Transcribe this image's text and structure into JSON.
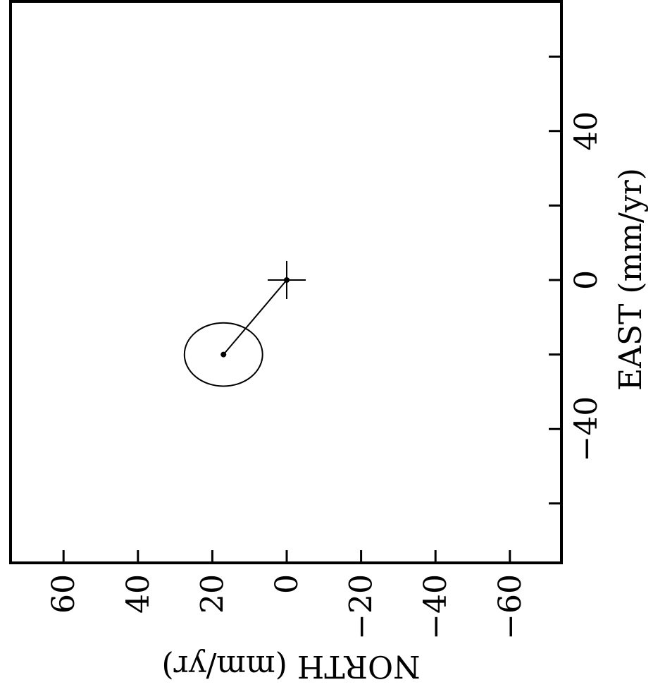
{
  "chart_data": {
    "type": "scatter",
    "title": "",
    "orientation": "rotated-90-clockwise",
    "xlabel": "NORTH  (mm/yr)",
    "ylabel": "EAST  (mm/yr)",
    "xlim": [
      75,
      -75
    ],
    "ylim": [
      -75,
      75
    ],
    "north_ticks": [
      {
        "value": 60,
        "label": "60"
      },
      {
        "value": 40,
        "label": "40"
      },
      {
        "value": 20,
        "label": "20"
      },
      {
        "value": 0,
        "label": "0"
      },
      {
        "value": -20,
        "label": "−20"
      },
      {
        "value": -40,
        "label": "−40"
      },
      {
        "value": -60,
        "label": "−60"
      }
    ],
    "east_ticks": [
      {
        "value": 60,
        "label": ""
      },
      {
        "value": 40,
        "label": "40"
      },
      {
        "value": 20,
        "label": ""
      },
      {
        "value": 0,
        "label": "0"
      },
      {
        "value": -20,
        "label": ""
      },
      {
        "value": -40,
        "label": "−40"
      },
      {
        "value": -60,
        "label": ""
      }
    ],
    "origin_marker": {
      "north": 0,
      "east": 0,
      "symbol": "cross"
    },
    "velocity_point": {
      "north": 17,
      "east": -20
    },
    "error_ellipse": {
      "center_north": 17,
      "center_east": -20,
      "semi_axis_north": 10.5,
      "semi_axis_east": 8.5
    },
    "vector": {
      "from": {
        "north": 0,
        "east": 0
      },
      "to": {
        "north": 17,
        "east": -20
      }
    },
    "grid": false,
    "legend": "none"
  }
}
